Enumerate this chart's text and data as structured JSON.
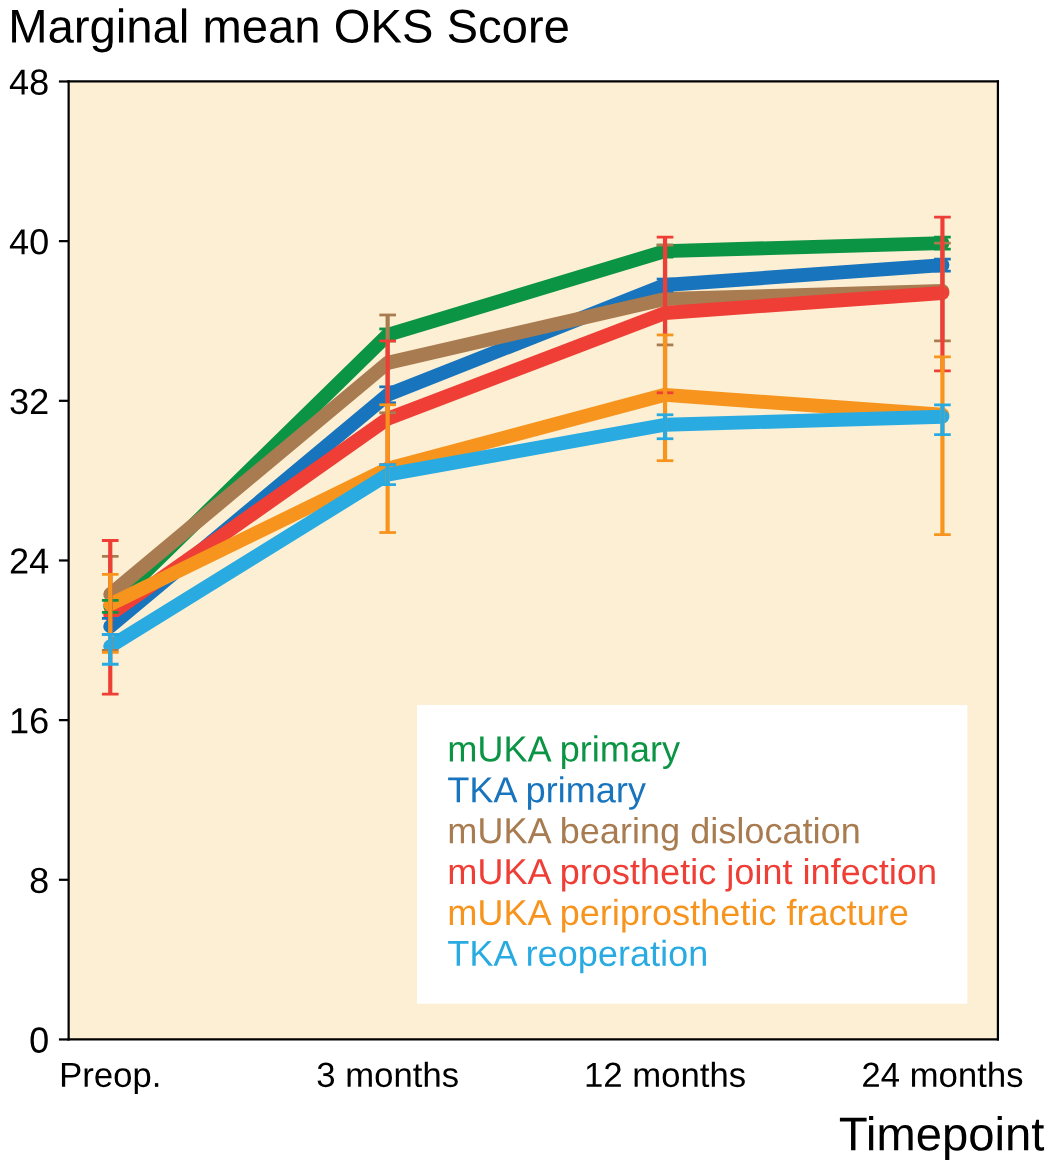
{
  "chart_data": {
    "type": "line",
    "title": "Marginal mean OKS Score",
    "xlabel": "Timepoint",
    "categories": [
      "Preop.",
      "3 months",
      "12 months",
      "24 months"
    ],
    "series": [
      {
        "name": "mUKA primary",
        "color": "#0a9444",
        "values": [
          21.7,
          35.3,
          39.5,
          39.9
        ],
        "errors": [
          0.3,
          0.3,
          0.3,
          0.3
        ]
      },
      {
        "name": "TKA primary",
        "color": "#1874bd",
        "values": [
          20.7,
          32.3,
          37.8,
          38.8
        ],
        "errors": [
          0.4,
          0.4,
          0.3,
          0.3
        ]
      },
      {
        "name": "mUKA bearing dislocation",
        "color": "#a87c50",
        "values": [
          22.3,
          33.9,
          37.1,
          37.5
        ],
        "errors": [
          [
            19.5,
            24.2
          ],
          [
            31.4,
            36.3
          ],
          [
            34.8,
            39.8
          ],
          [
            35.0,
            39.9
          ]
        ]
      },
      {
        "name": "mUKA prosthetic joint infection",
        "color": "#ee3e36",
        "values": [
          21.3,
          31.1,
          36.4,
          37.4
        ],
        "errors": [
          [
            17.3,
            25.0
          ],
          [
            28.8,
            35.0
          ],
          [
            32.4,
            40.2
          ],
          [
            33.5,
            41.2
          ]
        ]
      },
      {
        "name": "mUKA periprosthetic fracture",
        "color": "#f7941d",
        "values": [
          21.8,
          28.6,
          32.3,
          31.3
        ],
        "errors": [
          [
            19.4,
            23.3
          ],
          [
            25.4,
            31.8
          ],
          [
            29.0,
            35.3
          ],
          [
            25.3,
            34.2
          ]
        ]
      },
      {
        "name": "TKA reoperation",
        "color": "#29abe2",
        "values": [
          19.7,
          28.3,
          30.8,
          31.2
        ],
        "errors": [
          [
            18.8,
            20.3
          ],
          [
            27.8,
            28.8
          ],
          [
            30.1,
            31.3
          ],
          [
            30.3,
            31.8
          ]
        ]
      }
    ],
    "ylim": [
      0,
      48
    ],
    "yticks": [
      0,
      8,
      16,
      24,
      32,
      40,
      48
    ],
    "grid": false,
    "legend": "bottom right",
    "marker": "none",
    "line_style": "solid"
  }
}
